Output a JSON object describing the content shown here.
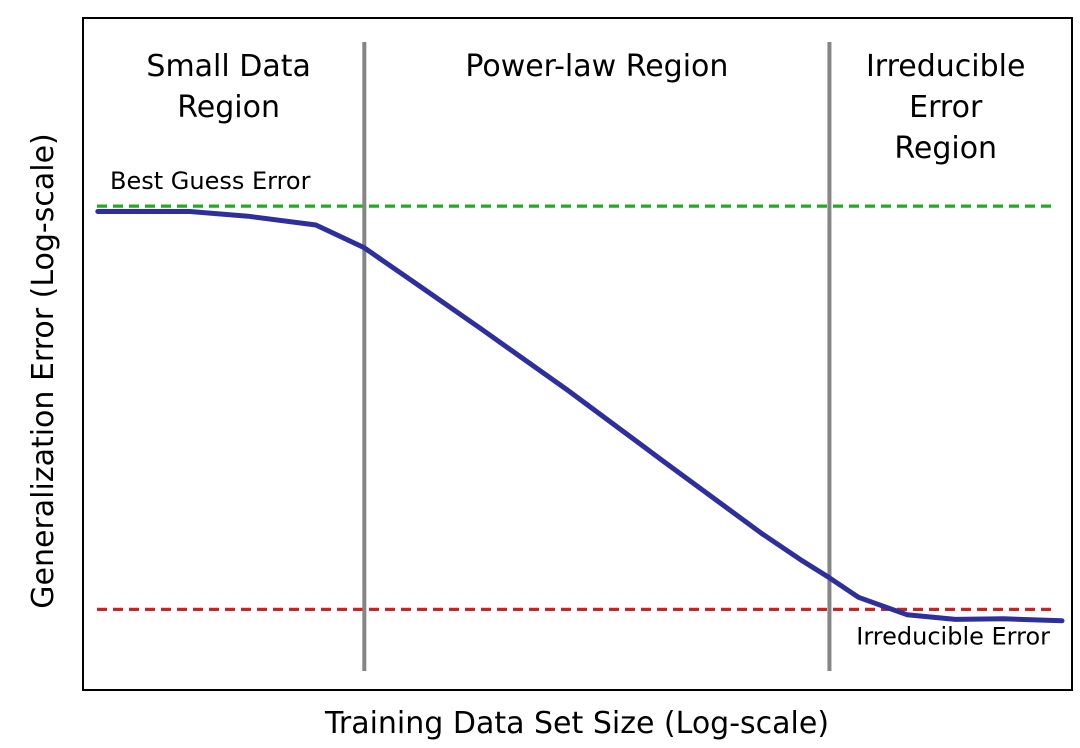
{
  "chart_data": {
    "type": "line",
    "title": "",
    "xlabel": "Training Data Set Size (Log-scale)",
    "ylabel": "Generalization Error (Log-scale)",
    "x_scale": "log",
    "y_scale": "log",
    "ticks": "none",
    "grid": false,
    "xlim": [
      0,
      10
    ],
    "ylim": [
      0,
      10
    ],
    "regions": [
      {
        "label_lines": [
          "Small Data",
          "Region"
        ],
        "x_start": 0,
        "x_end": 2.8
      },
      {
        "label_lines": [
          "Power-law Region"
        ],
        "x_start": 2.8,
        "x_end": 7.6
      },
      {
        "label_lines": [
          "Irreducible",
          "Error",
          "Region"
        ],
        "x_start": 7.6,
        "x_end": 10
      }
    ],
    "boundaries": [
      2.8,
      7.6
    ],
    "reference_lines": [
      {
        "label": "Best Guess Error",
        "y": 7.2,
        "color": "#22aa22",
        "style": "dashed",
        "label_position": "above-left"
      },
      {
        "label": "Irreducible Error",
        "y": 1.2,
        "color": "#cc2222",
        "style": "dashed",
        "label_position": "below-right"
      }
    ],
    "series": [
      {
        "color": "#2f2f9c",
        "x": [
          0.05,
          1.0,
          1.6,
          2.3,
          2.8,
          3.4,
          4.0,
          4.9,
          5.9,
          6.9,
          7.3,
          7.6,
          7.9,
          8.4,
          8.9,
          9.4,
          10.0
        ],
        "y": [
          7.12,
          7.12,
          7.05,
          6.92,
          6.58,
          5.98,
          5.38,
          4.46,
          3.39,
          2.33,
          1.94,
          1.67,
          1.38,
          1.12,
          1.05,
          1.06,
          1.03
        ]
      }
    ]
  }
}
